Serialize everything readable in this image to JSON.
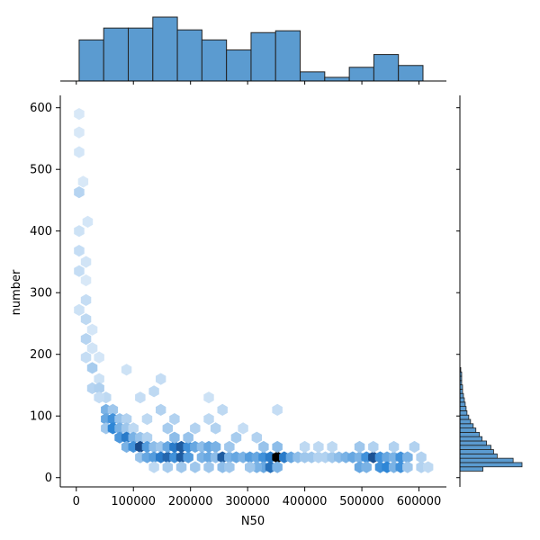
{
  "chart_data": {
    "type": "hexbin-joint",
    "xlabel": "N50",
    "ylabel": "number",
    "xlim": [
      -28000,
      648000
    ],
    "ylim": [
      -15,
      620
    ],
    "x_ticks": [
      0,
      100000,
      200000,
      300000,
      400000,
      500000,
      600000
    ],
    "y_ticks": [
      0,
      100,
      200,
      300,
      400,
      500,
      600
    ],
    "grid": false,
    "colors": {
      "hist_fill": "#5b9bd0",
      "hex_dark": "#000000",
      "edge": "#222222"
    },
    "x_hist": {
      "bin_edges": [
        5000,
        48000,
        91000,
        134000,
        177000,
        220000,
        263000,
        306000,
        349000,
        392000,
        435000,
        478000,
        521000,
        564000,
        607000
      ],
      "counts": [
        45,
        58,
        58,
        70,
        56,
        45,
        34,
        53,
        55,
        10,
        4,
        15,
        29,
        17
      ]
    },
    "y_hist": {
      "bin_centers": [
        14,
        21,
        28,
        35,
        42,
        49,
        56,
        63,
        70,
        77,
        84,
        91,
        98,
        105,
        112,
        119,
        126,
        133,
        140,
        147,
        154,
        161,
        168,
        175
      ],
      "counts": [
        26,
        70,
        60,
        42,
        38,
        35,
        30,
        25,
        22,
        18,
        15,
        12,
        10,
        8,
        7,
        6,
        5,
        4,
        3,
        3,
        2,
        2,
        2,
        1
      ]
    },
    "hexbins": [
      [
        5000,
        590,
        0.05
      ],
      [
        5000,
        560,
        0.05
      ],
      [
        5000,
        528,
        0.06
      ],
      [
        5000,
        463,
        0.14
      ],
      [
        12000,
        480,
        0.05
      ],
      [
        20000,
        415,
        0.06
      ],
      [
        5000,
        400,
        0.08
      ],
      [
        5000,
        368,
        0.1
      ],
      [
        17000,
        350,
        0.07
      ],
      [
        5000,
        335,
        0.1
      ],
      [
        17000,
        320,
        0.05
      ],
      [
        17000,
        288,
        0.1
      ],
      [
        5000,
        272,
        0.08
      ],
      [
        17000,
        257,
        0.12
      ],
      [
        17000,
        225,
        0.14
      ],
      [
        28000,
        240,
        0.06
      ],
      [
        17000,
        195,
        0.1
      ],
      [
        28000,
        210,
        0.07
      ],
      [
        40000,
        195,
        0.06
      ],
      [
        28000,
        178,
        0.18
      ],
      [
        40000,
        160,
        0.08
      ],
      [
        28000,
        145,
        0.14
      ],
      [
        40000,
        145,
        0.16
      ],
      [
        52000,
        130,
        0.12
      ],
      [
        40000,
        130,
        0.1
      ],
      [
        52000,
        110,
        0.3
      ],
      [
        64000,
        110,
        0.2
      ],
      [
        52000,
        95,
        0.35
      ],
      [
        64000,
        95,
        0.45
      ],
      [
        76000,
        95,
        0.22
      ],
      [
        88000,
        95,
        0.15
      ],
      [
        52000,
        80,
        0.2
      ],
      [
        64000,
        80,
        0.5
      ],
      [
        76000,
        80,
        0.3
      ],
      [
        88000,
        80,
        0.2
      ],
      [
        100000,
        80,
        0.12
      ],
      [
        76000,
        65,
        0.42
      ],
      [
        88000,
        65,
        0.55
      ],
      [
        100000,
        65,
        0.3
      ],
      [
        112000,
        65,
        0.22
      ],
      [
        124000,
        65,
        0.15
      ],
      [
        88000,
        50,
        0.3
      ],
      [
        100000,
        50,
        0.45
      ],
      [
        112000,
        50,
        0.78
      ],
      [
        124000,
        50,
        0.4
      ],
      [
        136000,
        50,
        0.25
      ],
      [
        148000,
        50,
        0.2
      ],
      [
        112000,
        33,
        0.22
      ],
      [
        124000,
        33,
        0.35
      ],
      [
        136000,
        33,
        0.4
      ],
      [
        148000,
        33,
        0.55
      ],
      [
        160000,
        33,
        0.65
      ],
      [
        172000,
        33,
        0.45
      ],
      [
        184000,
        33,
        0.7
      ],
      [
        196000,
        33,
        0.4
      ],
      [
        160000,
        50,
        0.35
      ],
      [
        172000,
        50,
        0.55
      ],
      [
        184000,
        50,
        0.7
      ],
      [
        196000,
        50,
        0.45
      ],
      [
        208000,
        50,
        0.35
      ],
      [
        172000,
        65,
        0.25
      ],
      [
        196000,
        65,
        0.22
      ],
      [
        220000,
        50,
        0.25
      ],
      [
        232000,
        50,
        0.35
      ],
      [
        244000,
        50,
        0.3
      ],
      [
        220000,
        33,
        0.3
      ],
      [
        232000,
        33,
        0.35
      ],
      [
        244000,
        33,
        0.25
      ],
      [
        256000,
        33,
        0.7
      ],
      [
        268000,
        33,
        0.3
      ],
      [
        280000,
        33,
        0.35
      ],
      [
        268000,
        50,
        0.2
      ],
      [
        292000,
        33,
        0.3
      ],
      [
        304000,
        33,
        0.4
      ],
      [
        316000,
        33,
        0.35
      ],
      [
        328000,
        33,
        0.45
      ],
      [
        340000,
        33,
        0.55
      ],
      [
        352000,
        33,
        1.0
      ],
      [
        364000,
        33,
        0.55
      ],
      [
        376000,
        33,
        0.35
      ],
      [
        328000,
        50,
        0.22
      ],
      [
        352000,
        50,
        0.25
      ],
      [
        328000,
        17,
        0.35
      ],
      [
        340000,
        17,
        0.6
      ],
      [
        352000,
        17,
        0.3
      ],
      [
        316000,
        17,
        0.3
      ],
      [
        304000,
        17,
        0.2
      ],
      [
        388000,
        33,
        0.25
      ],
      [
        400000,
        33,
        0.2
      ],
      [
        412000,
        33,
        0.2
      ],
      [
        424000,
        33,
        0.15
      ],
      [
        436000,
        33,
        0.15
      ],
      [
        448000,
        33,
        0.2
      ],
      [
        460000,
        33,
        0.25
      ],
      [
        472000,
        33,
        0.3
      ],
      [
        484000,
        33,
        0.35
      ],
      [
        496000,
        33,
        0.3
      ],
      [
        508000,
        33,
        0.45
      ],
      [
        520000,
        33,
        0.75
      ],
      [
        532000,
        33,
        0.45
      ],
      [
        544000,
        33,
        0.35
      ],
      [
        556000,
        33,
        0.3
      ],
      [
        568000,
        33,
        0.45
      ],
      [
        580000,
        33,
        0.3
      ],
      [
        496000,
        17,
        0.35
      ],
      [
        508000,
        17,
        0.3
      ],
      [
        532000,
        17,
        0.45
      ],
      [
        544000,
        17,
        0.5
      ],
      [
        556000,
        17,
        0.3
      ],
      [
        568000,
        17,
        0.45
      ],
      [
        580000,
        17,
        0.2
      ],
      [
        604000,
        17,
        0.15
      ],
      [
        496000,
        50,
        0.2
      ],
      [
        520000,
        50,
        0.15
      ],
      [
        556000,
        50,
        0.15
      ],
      [
        160000,
        80,
        0.18
      ],
      [
        208000,
        80,
        0.15
      ],
      [
        244000,
        80,
        0.15
      ],
      [
        280000,
        65,
        0.18
      ],
      [
        232000,
        95,
        0.12
      ],
      [
        256000,
        110,
        0.12
      ],
      [
        148000,
        110,
        0.15
      ],
      [
        172000,
        95,
        0.15
      ],
      [
        124000,
        95,
        0.12
      ],
      [
        136000,
        140,
        0.12
      ],
      [
        148000,
        160,
        0.1
      ],
      [
        88000,
        175,
        0.08
      ],
      [
        112000,
        130,
        0.1
      ],
      [
        232000,
        130,
        0.08
      ],
      [
        292000,
        80,
        0.1
      ],
      [
        316000,
        65,
        0.15
      ],
      [
        352000,
        110,
        0.1
      ],
      [
        400000,
        50,
        0.12
      ],
      [
        424000,
        50,
        0.12
      ],
      [
        448000,
        50,
        0.12
      ],
      [
        208000,
        17,
        0.2
      ],
      [
        232000,
        17,
        0.2
      ],
      [
        256000,
        17,
        0.25
      ],
      [
        268000,
        17,
        0.2
      ],
      [
        184000,
        17,
        0.2
      ],
      [
        160000,
        17,
        0.18
      ],
      [
        136000,
        17,
        0.12
      ],
      [
        592000,
        50,
        0.15
      ],
      [
        604000,
        33,
        0.15
      ],
      [
        616000,
        17,
        0.12
      ]
    ]
  }
}
